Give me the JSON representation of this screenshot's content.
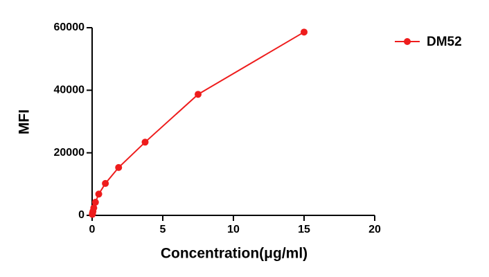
{
  "chart_data": {
    "type": "line",
    "x_label": "Concentration(μg/ml)",
    "y_label": "MFI",
    "series": [
      {
        "name": "DM52",
        "color": "#ee1c1c",
        "x": [
          0.0146,
          0.0293,
          0.0586,
          0.117,
          0.234,
          0.469,
          0.9375,
          1.875,
          3.75,
          7.5,
          15
        ],
        "values": [
          300,
          700,
          1300,
          2400,
          4200,
          6800,
          10200,
          15300,
          23400,
          38700,
          58600
        ]
      }
    ],
    "xlim": [
      0,
      20
    ],
    "xticks": [
      0,
      5,
      10,
      15,
      20
    ],
    "ylim": [
      0,
      60000
    ],
    "yticks": [
      0,
      20000,
      40000,
      60000
    ],
    "legend": "right",
    "grid": false
  }
}
